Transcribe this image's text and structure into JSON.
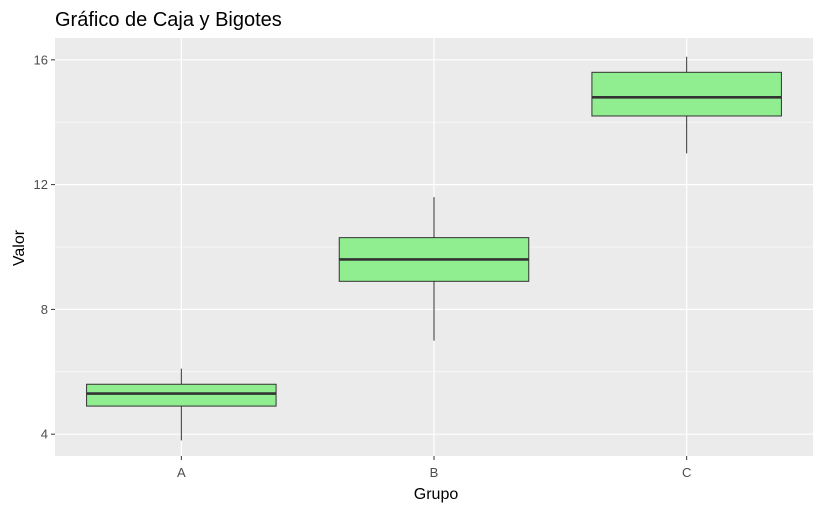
{
  "chart_data": {
    "type": "box",
    "title": "Gráfico de Caja y Bigotes",
    "xlabel": "Grupo",
    "ylabel": "Valor",
    "categories": [
      "A",
      "B",
      "C"
    ],
    "ylim": [
      3.3,
      16.7
    ],
    "yticks": [
      4,
      8,
      12,
      16
    ],
    "grid": true,
    "legend": "none",
    "colors": {
      "panel": "#ebebeb",
      "grid": "#ffffff",
      "box_fill": "#90ee90",
      "box_stroke": "#333333",
      "tick_text": "#4d4d4d"
    },
    "boxes": [
      {
        "category": "A",
        "whisker_low": 3.8,
        "q1": 4.9,
        "median": 5.3,
        "q3": 5.6,
        "whisker_high": 6.1
      },
      {
        "category": "B",
        "whisker_low": 7.0,
        "q1": 8.9,
        "median": 9.6,
        "q3": 10.3,
        "whisker_high": 11.6
      },
      {
        "category": "C",
        "whisker_low": 13.0,
        "q1": 14.2,
        "median": 14.8,
        "q3": 15.6,
        "whisker_high": 16.1
      }
    ]
  }
}
